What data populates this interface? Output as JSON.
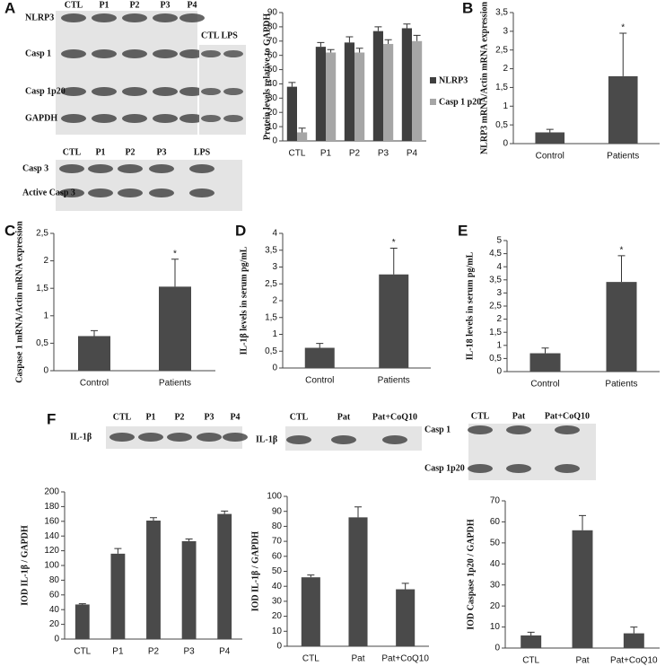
{
  "panel_letters": [
    "A",
    "B",
    "C",
    "D",
    "E",
    "F"
  ],
  "blots": [
    {
      "lanes": [
        "CTL",
        "P1",
        "P2",
        "P3",
        "P4"
      ],
      "rows": [
        "NLRP3",
        "Casp 1",
        "Casp 1p20",
        "GAPDH"
      ],
      "side_label": "CTL LPS"
    },
    {
      "lanes": [
        "CTL",
        "P1",
        "P2",
        "P3",
        "LPS"
      ],
      "rows": [
        "Casp 3",
        "Active Casp 3"
      ]
    },
    {
      "lanes": [
        "CTL",
        "P1",
        "P2",
        "P3",
        "P4"
      ],
      "rows": [
        "IL-1β"
      ]
    },
    {
      "lanes": [
        "CTL",
        "Pat",
        "Pat+CoQ10"
      ],
      "rows": [
        "IL-1β"
      ]
    },
    {
      "lanes": [
        "CTL",
        "Pat",
        "Pat+CoQ10"
      ],
      "rows": [
        "Casp 1",
        "Casp 1p20"
      ]
    }
  ],
  "chart_data": [
    {
      "type": "bar",
      "y_label": "Protein levels relative to GAPDH",
      "categories": [
        "CTL",
        "P1",
        "P2",
        "P3",
        "P4"
      ],
      "series": [
        {
          "name": "NLRP3",
          "color": "#3f3f3f",
          "values": [
            38,
            66,
            69,
            77,
            79
          ],
          "errors": [
            3,
            3,
            4,
            3,
            3
          ]
        },
        {
          "name": "Casp 1 p20",
          "color": "#a6a6a6",
          "values": [
            6,
            62,
            62,
            68,
            70
          ],
          "errors": [
            3,
            2,
            3,
            3,
            4
          ]
        }
      ],
      "ylim": [
        0,
        90
      ],
      "yticks": [
        0,
        10,
        20,
        30,
        40,
        50,
        60,
        70,
        80,
        90
      ],
      "legend": "right"
    },
    {
      "type": "bar",
      "y_label": "NLRP3 mRNA/Actin mRNA expression",
      "categories": [
        "Control",
        "Patients"
      ],
      "values": [
        0.3,
        1.8
      ],
      "errors": [
        0.08,
        1.15
      ],
      "color": "#4a4a4a",
      "annotation": "*",
      "ylim": [
        0,
        3.5
      ],
      "yticks": [
        0,
        {
          "value": 0.5,
          "label": "0,5"
        },
        1,
        {
          "value": 1.5,
          "label": "1,5"
        },
        2,
        {
          "value": 2.5,
          "label": "2,5"
        },
        3,
        {
          "value": 3.5,
          "label": "3,5"
        }
      ]
    },
    {
      "type": "bar",
      "y_label": "Caspase 1 mRNA/Actin mRNA expression",
      "categories": [
        "Control",
        "Patients"
      ],
      "values": [
        0.63,
        1.53
      ],
      "errors": [
        0.1,
        0.5
      ],
      "color": "#4a4a4a",
      "annotation": "*",
      "ylim": [
        0,
        2.5
      ],
      "yticks": [
        0,
        {
          "value": 0.5,
          "label": "0,5"
        },
        1,
        {
          "value": 1.5,
          "label": "1,5"
        },
        2,
        {
          "value": 2.5,
          "label": "2,5"
        }
      ]
    },
    {
      "type": "bar",
      "y_label": "IL-1β levels in serum pg/mL",
      "categories": [
        "Control",
        "Patients"
      ],
      "values": [
        0.6,
        2.78
      ],
      "errors": [
        0.13,
        0.78
      ],
      "color": "#4a4a4a",
      "annotation": "*",
      "ylim": [
        0,
        4
      ],
      "yticks": [
        0,
        {
          "value": 0.5,
          "label": "0,5"
        },
        1,
        {
          "value": 1.5,
          "label": "1,5"
        },
        2,
        {
          "value": 2.5,
          "label": "2,5"
        },
        3,
        {
          "value": 3.5,
          "label": "3,5"
        },
        4
      ]
    },
    {
      "type": "bar",
      "y_label": "IL-18 levels in serum pg/mL",
      "categories": [
        "Control",
        "Patients"
      ],
      "values": [
        0.7,
        3.42
      ],
      "errors": [
        0.2,
        1.0
      ],
      "color": "#4a4a4a",
      "annotation": "*",
      "ylim": [
        0,
        5
      ],
      "yticks": [
        0,
        {
          "value": 0.5,
          "label": "0,5"
        },
        1,
        {
          "value": 1.5,
          "label": "1,5"
        },
        2,
        {
          "value": 2.5,
          "label": "2,5"
        },
        3,
        {
          "value": 3.5,
          "label": "3,5"
        },
        4,
        {
          "value": 4.5,
          "label": "4,5"
        },
        5
      ]
    },
    {
      "type": "bar",
      "y_label": "IOD IL-1β / GAPDH",
      "categories": [
        "CTL",
        "P1",
        "P2",
        "P3",
        "P4"
      ],
      "values": [
        47,
        116,
        161,
        133,
        170
      ],
      "errors": [
        1,
        7,
        4,
        3,
        4
      ],
      "color": "#4a4a4a",
      "ylim": [
        0,
        200
      ],
      "yticks": [
        0,
        20,
        40,
        60,
        80,
        100,
        120,
        140,
        160,
        180,
        200
      ]
    },
    {
      "type": "bar",
      "y_label": "IOD IL-1β / GAPDH",
      "categories": [
        "CTL",
        "Pat",
        "Pat+CoQ10"
      ],
      "values": [
        46,
        86,
        38
      ],
      "errors": [
        1.5,
        7,
        4
      ],
      "color": "#4a4a4a",
      "ylim": [
        0,
        100
      ],
      "yticks": [
        0,
        10,
        20,
        30,
        40,
        50,
        60,
        70,
        80,
        90,
        100
      ]
    },
    {
      "type": "bar",
      "y_label": "IOD Caspase 1p20 / GAPDH",
      "categories": [
        "CTL",
        "Pat",
        "Pat+CoQ10"
      ],
      "values": [
        6,
        56,
        7
      ],
      "errors": [
        1.5,
        7,
        3
      ],
      "color": "#4a4a4a",
      "ylim": [
        0,
        70
      ],
      "yticks": [
        0,
        10,
        20,
        30,
        40,
        50,
        60,
        70
      ]
    }
  ]
}
